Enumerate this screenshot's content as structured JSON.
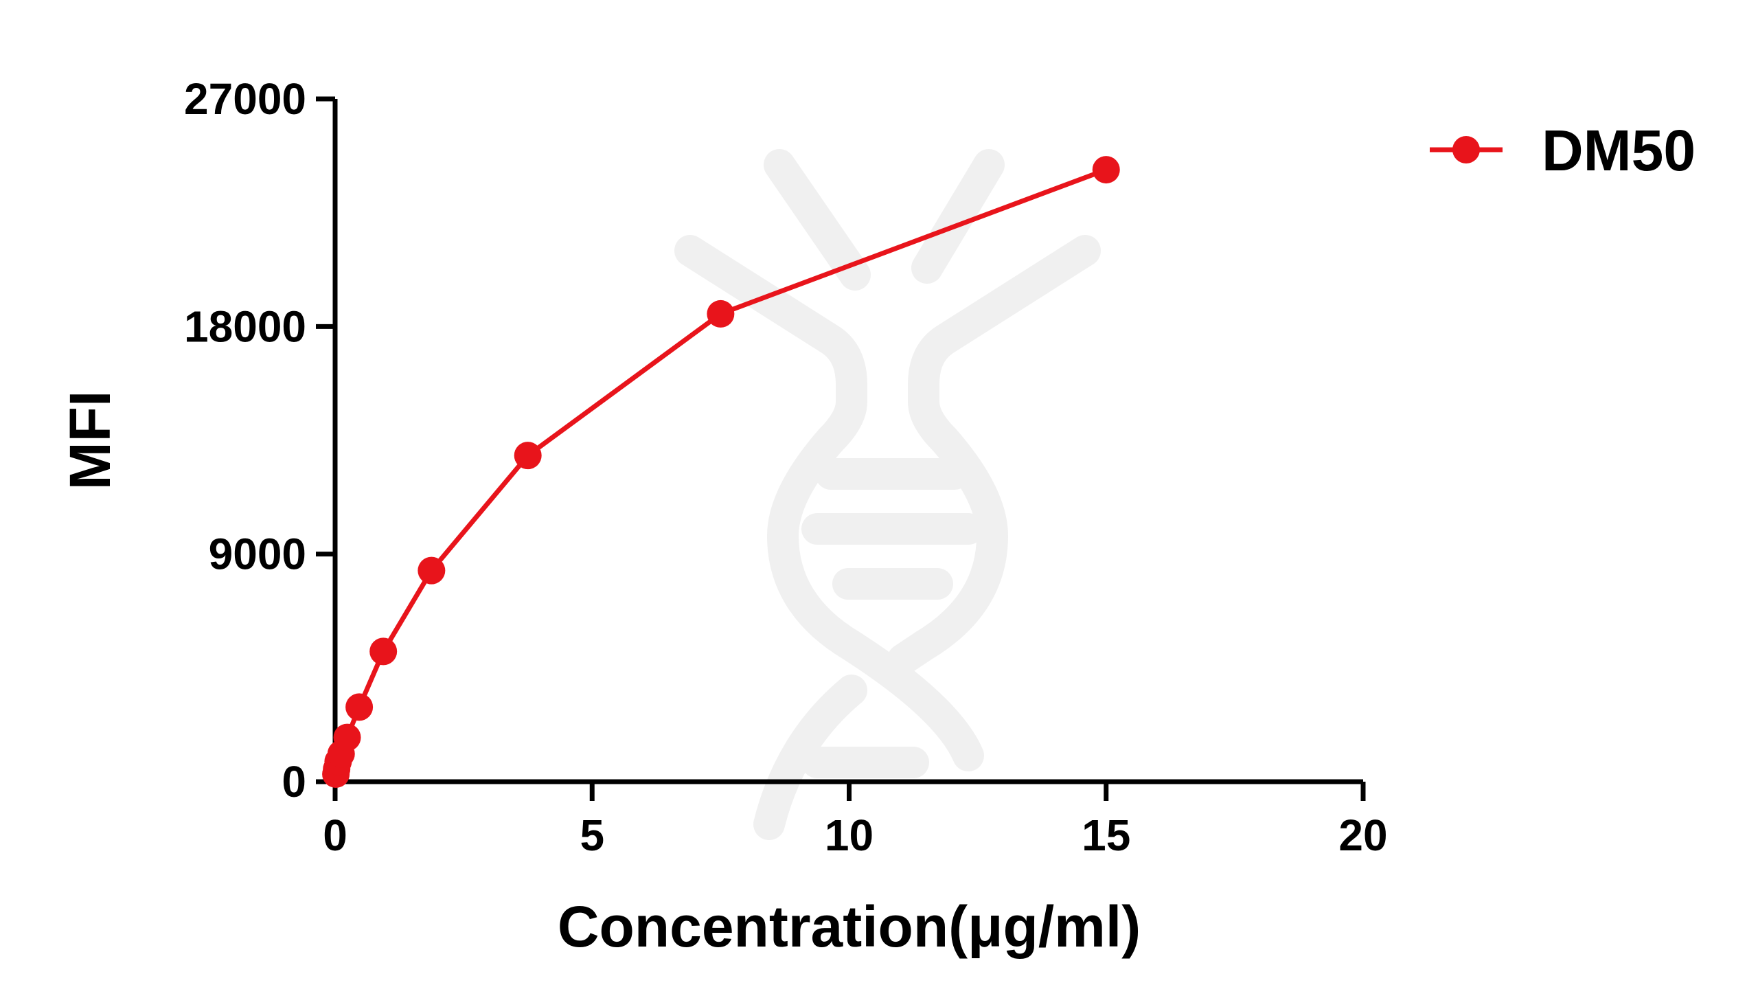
{
  "chart_data": {
    "type": "line",
    "xlabel": "Concentration(μg/ml)",
    "ylabel": "MFI",
    "xlim": [
      0,
      20
    ],
    "ylim": [
      0,
      27000
    ],
    "x_ticks": [
      0,
      5,
      10,
      15,
      20
    ],
    "x_tick_labels": [
      "0",
      "5",
      "10",
      "15",
      "20"
    ],
    "y_ticks": [
      0,
      9000,
      18000,
      27000
    ],
    "y_tick_labels": [
      "0",
      "9000",
      "18000",
      "27000"
    ],
    "grid": false,
    "legend_position": "top-right",
    "colors": {
      "series": "#e8141b",
      "axis": "#000000",
      "watermark": "#f0f0f0"
    },
    "series": [
      {
        "name": "DM50",
        "x": [
          0.0146,
          0.0293,
          0.0586,
          0.117,
          0.234,
          0.469,
          0.9375,
          1.875,
          3.75,
          7.5,
          15
        ],
        "y": [
          300,
          500,
          800,
          1100,
          1750,
          2950,
          5150,
          8350,
          12900,
          18500,
          24200
        ]
      }
    ]
  }
}
